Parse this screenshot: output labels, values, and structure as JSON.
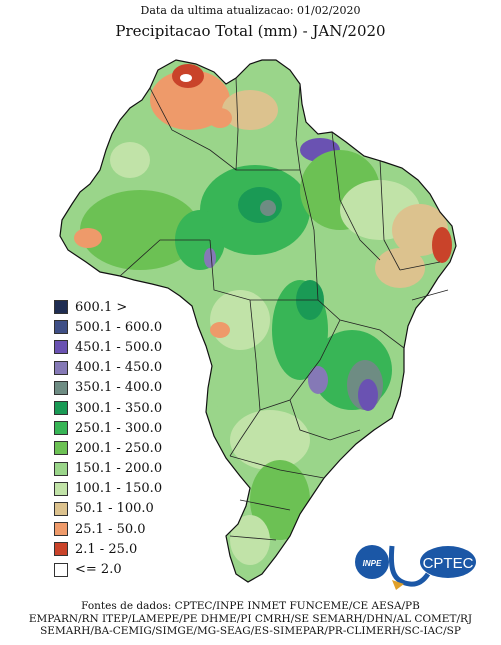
{
  "header": {
    "update_line": "Data da ultima atualizacao: 01/02/2020",
    "title": "Precipitacao Total (mm) - JAN/2020"
  },
  "legend": [
    {
      "label": "600.1 >",
      "color": "#1f2d52"
    },
    {
      "label": "500.1 - 600.0",
      "color": "#3f4f86"
    },
    {
      "label": "450.1 - 500.0",
      "color": "#6a52b2"
    },
    {
      "label": "400.1 - 450.0",
      "color": "#8579b6"
    },
    {
      "label": "350.1 - 400.0",
      "color": "#6e8c83"
    },
    {
      "label": "300.1 - 350.0",
      "color": "#1a9a55"
    },
    {
      "label": "250.1 - 300.0",
      "color": "#38b556"
    },
    {
      "label": "200.1 - 250.0",
      "color": "#6cc154"
    },
    {
      "label": "150.1 - 200.0",
      "color": "#9ad58a"
    },
    {
      "label": "100.1 - 150.0",
      "color": "#c1e3a8"
    },
    {
      "label": "50.1 - 100.0",
      "color": "#dcc28e"
    },
    {
      "label": "25.1 - 50.0",
      "color": "#ee9a6a"
    },
    {
      "label": "2.1 - 25.0",
      "color": "#c9432a"
    },
    {
      "label": "<= 2.0",
      "color": "#ffffff"
    }
  ],
  "logos": {
    "inpe": "INPE",
    "cptec": "CPTEC"
  },
  "sources": {
    "line1": "Fontes de dados: CPTEC/INPE INMET FUNCEME/CE AESA/PB",
    "line2": "EMPARN/RN ITEP/LAMEPE/PE DHME/PI CMRH/SE SEMARH/DHN/AL COMET/RJ",
    "line3": "SEMARH/BA-CEMIG/SIMGE/MG-SEAG/ES-SIMEPAR/PR-CLIMERH/SC-IAC/SP"
  }
}
